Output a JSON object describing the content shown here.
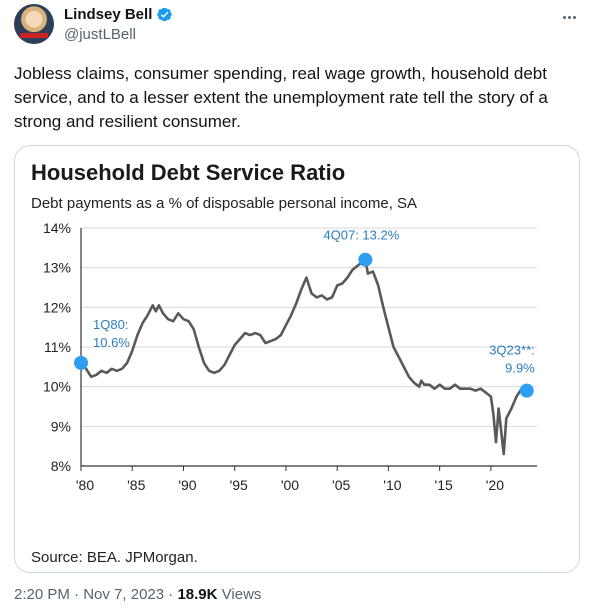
{
  "author": {
    "display_name": "Lindsey Bell",
    "handle": "@justLBell",
    "verified": true,
    "avatar_icon": "avatar-photo",
    "more_icon": "more-dots-icon"
  },
  "tweet": {
    "text": "Jobless claims, consumer spending, real wage growth, household debt service, and to a lesser extent the unemployment rate tell the story of a strong and resilient consumer."
  },
  "meta": {
    "time": "2:20 PM",
    "separator": "·",
    "date": "Nov 7, 2023",
    "views_count": "18.9K",
    "views_label": "Views"
  },
  "colors": {
    "accent": "#1d9bf0",
    "line": "#595959",
    "marker": "#2e9ef0",
    "annotation": "#2a7fc0"
  },
  "chart_data": {
    "type": "line",
    "title": "Household Debt Service Ratio",
    "subtitle": "Debt payments as a % of disposable personal income, SA",
    "source": "Source: BEA. JPMorgan.",
    "xlabel": "",
    "ylabel": "",
    "xlim": [
      1980,
      2024.5
    ],
    "ylim": [
      8,
      14
    ],
    "x_ticks": [
      1980,
      1985,
      1990,
      1995,
      2000,
      2005,
      2010,
      2015,
      2020
    ],
    "x_tick_labels": [
      "'80",
      "'85",
      "'90",
      "'95",
      "'00",
      "'05",
      "'10",
      "'15",
      "'20"
    ],
    "y_ticks": [
      8,
      9,
      10,
      11,
      12,
      13,
      14
    ],
    "y_tick_labels": [
      "8%",
      "9%",
      "10%",
      "11%",
      "12%",
      "13%",
      "14%"
    ],
    "grid": true,
    "series": [
      {
        "values": [
          [
            1980.0,
            10.6
          ],
          [
            1980.5,
            10.45
          ],
          [
            1981.0,
            10.25
          ],
          [
            1981.5,
            10.3
          ],
          [
            1982.0,
            10.4
          ],
          [
            1982.5,
            10.35
          ],
          [
            1983.0,
            10.45
          ],
          [
            1983.5,
            10.4
          ],
          [
            1984.0,
            10.45
          ],
          [
            1984.5,
            10.6
          ],
          [
            1985.0,
            10.9
          ],
          [
            1985.5,
            11.3
          ],
          [
            1986.0,
            11.6
          ],
          [
            1986.5,
            11.8
          ],
          [
            1987.0,
            12.05
          ],
          [
            1987.3,
            11.9
          ],
          [
            1987.6,
            12.05
          ],
          [
            1988.0,
            11.85
          ],
          [
            1988.5,
            11.7
          ],
          [
            1989.0,
            11.65
          ],
          [
            1989.5,
            11.85
          ],
          [
            1990.0,
            11.7
          ],
          [
            1990.5,
            11.65
          ],
          [
            1991.0,
            11.45
          ],
          [
            1991.5,
            11.0
          ],
          [
            1992.0,
            10.6
          ],
          [
            1992.5,
            10.4
          ],
          [
            1993.0,
            10.35
          ],
          [
            1993.5,
            10.4
          ],
          [
            1994.0,
            10.55
          ],
          [
            1994.5,
            10.8
          ],
          [
            1995.0,
            11.05
          ],
          [
            1995.5,
            11.2
          ],
          [
            1996.0,
            11.35
          ],
          [
            1996.5,
            11.3
          ],
          [
            1997.0,
            11.35
          ],
          [
            1997.5,
            11.3
          ],
          [
            1998.0,
            11.1
          ],
          [
            1998.5,
            11.15
          ],
          [
            1999.0,
            11.2
          ],
          [
            1999.5,
            11.3
          ],
          [
            2000.0,
            11.55
          ],
          [
            2000.5,
            11.8
          ],
          [
            2001.0,
            12.1
          ],
          [
            2001.5,
            12.45
          ],
          [
            2002.0,
            12.75
          ],
          [
            2002.5,
            12.35
          ],
          [
            2003.0,
            12.25
          ],
          [
            2003.5,
            12.3
          ],
          [
            2004.0,
            12.2
          ],
          [
            2004.5,
            12.25
          ],
          [
            2005.0,
            12.55
          ],
          [
            2005.5,
            12.6
          ],
          [
            2006.0,
            12.75
          ],
          [
            2006.5,
            12.95
          ],
          [
            2007.0,
            13.05
          ],
          [
            2007.75,
            13.2
          ],
          [
            2008.0,
            12.85
          ],
          [
            2008.5,
            12.9
          ],
          [
            2009.0,
            12.55
          ],
          [
            2009.5,
            12.0
          ],
          [
            2010.0,
            11.5
          ],
          [
            2010.5,
            11.0
          ],
          [
            2011.0,
            10.75
          ],
          [
            2011.5,
            10.5
          ],
          [
            2012.0,
            10.25
          ],
          [
            2012.5,
            10.1
          ],
          [
            2013.0,
            10.0
          ],
          [
            2013.2,
            10.15
          ],
          [
            2013.5,
            10.05
          ],
          [
            2014.0,
            10.05
          ],
          [
            2014.5,
            9.95
          ],
          [
            2015.0,
            10.05
          ],
          [
            2015.5,
            9.95
          ],
          [
            2016.0,
            9.95
          ],
          [
            2016.5,
            10.05
          ],
          [
            2017.0,
            9.95
          ],
          [
            2017.5,
            9.95
          ],
          [
            2018.0,
            9.95
          ],
          [
            2018.5,
            9.9
          ],
          [
            2019.0,
            9.95
          ],
          [
            2019.5,
            9.85
          ],
          [
            2020.0,
            9.75
          ],
          [
            2020.25,
            9.3
          ],
          [
            2020.5,
            8.6
          ],
          [
            2020.75,
            9.45
          ],
          [
            2021.0,
            8.9
          ],
          [
            2021.25,
            8.3
          ],
          [
            2021.5,
            9.2
          ],
          [
            2022.0,
            9.45
          ],
          [
            2022.5,
            9.75
          ],
          [
            2023.0,
            9.95
          ],
          [
            2023.25,
            9.85
          ],
          [
            2023.5,
            9.9
          ]
        ]
      }
    ],
    "annotations": [
      {
        "x": 1980.0,
        "y": 10.6,
        "label_line1": "1Q80:",
        "label_line2": "10.6%"
      },
      {
        "x": 2007.75,
        "y": 13.2,
        "label_line1": "4Q07: 13.2%",
        "label_line2": ""
      },
      {
        "x": 2023.5,
        "y": 9.9,
        "label_line1": "3Q23**:",
        "label_line2": "9.9%"
      }
    ]
  }
}
